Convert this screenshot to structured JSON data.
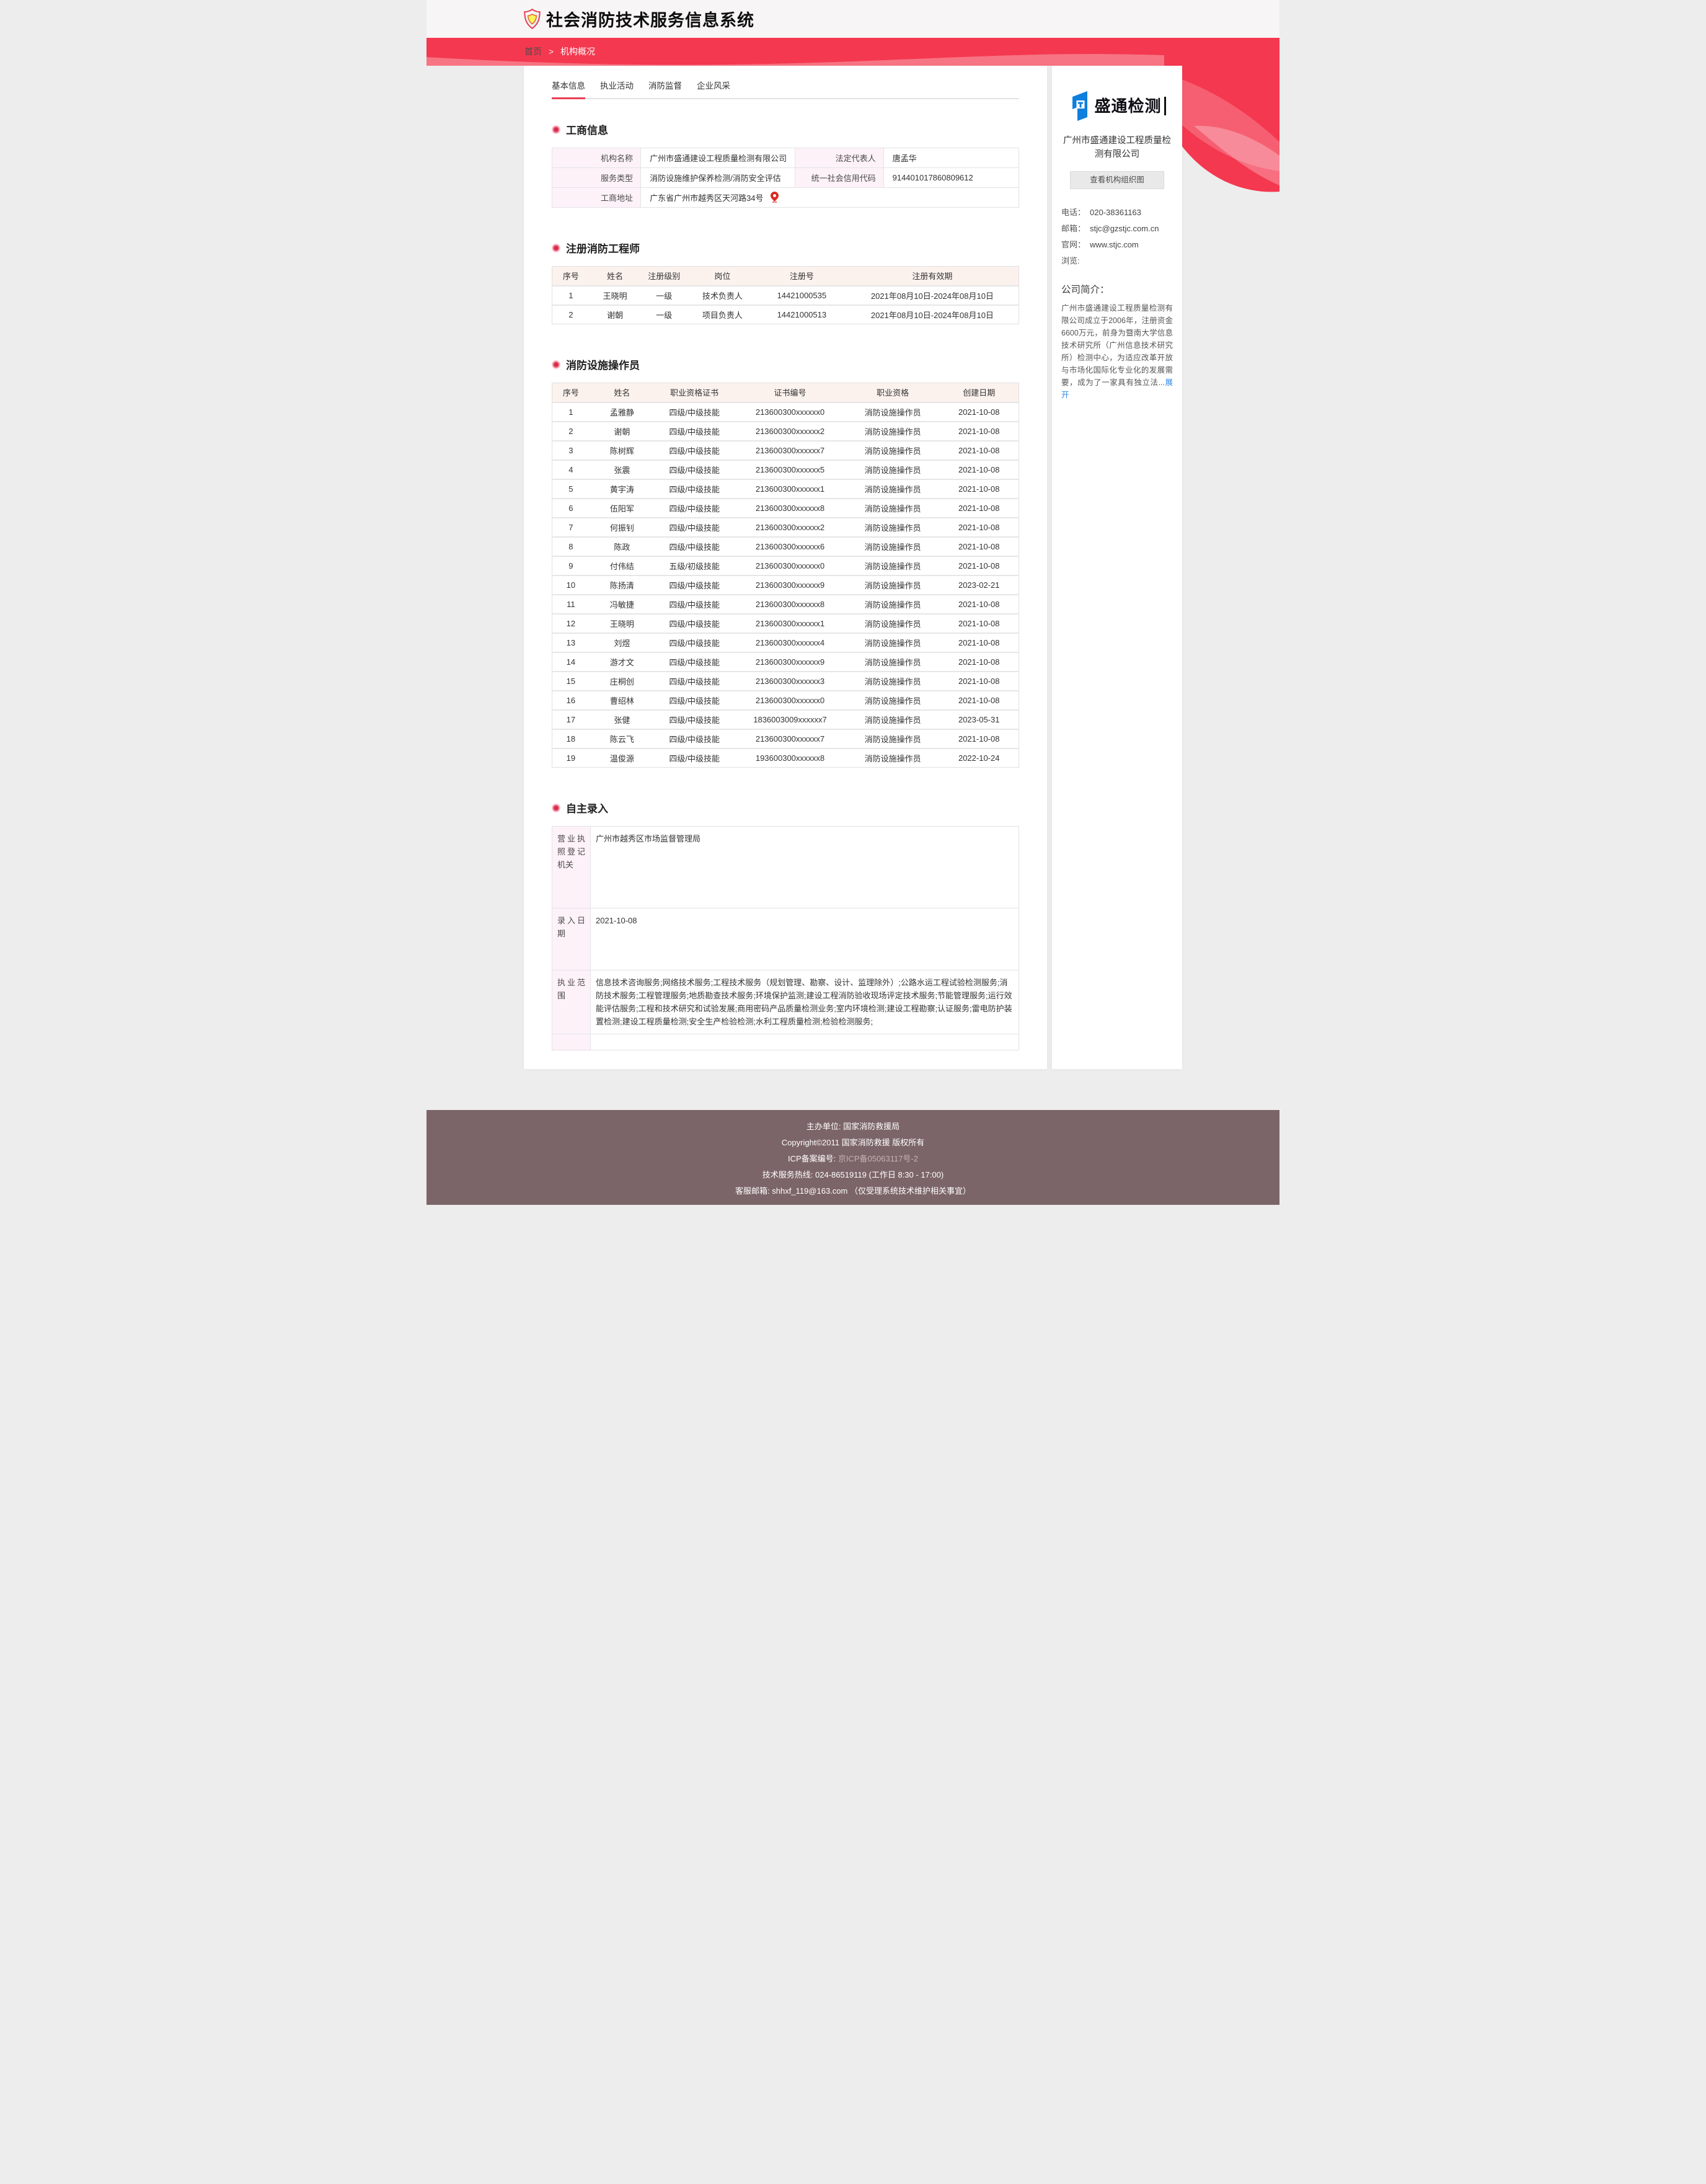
{
  "colors": {
    "accent_red": "#f4384f",
    "tab_underline": "#ea3c55",
    "label_pink_bg": "#fdf2f8",
    "table_header_bg": "#fbf2ee",
    "footer_bg": "#7c6568",
    "link_blue": "#2f8be6",
    "logo_blue": "#0e7fdd"
  },
  "icons": {
    "header_logo": "shield-icon",
    "section_marker": "bullet-icon",
    "address": "location-pin-icon",
    "sidebar_logo": "st-logo-icon"
  },
  "header": {
    "title": "社会消防技术服务信息系统"
  },
  "breadcrumb": {
    "home": "首页",
    "separator": ">",
    "current": "机构概况"
  },
  "tabs": [
    {
      "label": "基本信息",
      "active": true
    },
    {
      "label": "执业活动",
      "active": false
    },
    {
      "label": "消防监督",
      "active": false
    },
    {
      "label": "企业风采",
      "active": false
    }
  ],
  "business": {
    "title": "工商信息",
    "fields": [
      {
        "label": "机构名称",
        "value": "广州市盛通建设工程质量检测有限公司"
      },
      {
        "label": "法定代表人",
        "value": "唐孟华"
      },
      {
        "label": "服务类型",
        "value": "消防设施维护保养检测/消防安全评估"
      },
      {
        "label": "统一社会信用代码",
        "value": "914401017860809612"
      },
      {
        "label": "工商地址",
        "value": "广东省广州市越秀区天河路34号"
      }
    ]
  },
  "engineers": {
    "title": "注册消防工程师",
    "headers": [
      "序号",
      "姓名",
      "注册级别",
      "岗位",
      "注册号",
      "注册有效期"
    ],
    "rows": [
      [
        "1",
        "王晓明",
        "一级",
        "技术负责人",
        "14421000535",
        "2021年08月10日-2024年08月10日"
      ],
      [
        "2",
        "谢朝",
        "一级",
        "项目负责人",
        "14421000513",
        "2021年08月10日-2024年08月10日"
      ]
    ]
  },
  "operators": {
    "title": "消防设施操作员",
    "headers": [
      "序号",
      "姓名",
      "职业资格证书",
      "证书编号",
      "职业资格",
      "创建日期"
    ],
    "rows": [
      [
        "1",
        "孟雅静",
        "四级/中级技能",
        "213600300xxxxxx0",
        "消防设施操作员",
        "2021-10-08"
      ],
      [
        "2",
        "谢朝",
        "四级/中级技能",
        "213600300xxxxxx2",
        "消防设施操作员",
        "2021-10-08"
      ],
      [
        "3",
        "陈树辉",
        "四级/中级技能",
        "213600300xxxxxx7",
        "消防设施操作员",
        "2021-10-08"
      ],
      [
        "4",
        "张震",
        "四级/中级技能",
        "213600300xxxxxx5",
        "消防设施操作员",
        "2021-10-08"
      ],
      [
        "5",
        "黄宇涛",
        "四级/中级技能",
        "213600300xxxxxx1",
        "消防设施操作员",
        "2021-10-08"
      ],
      [
        "6",
        "伍阳军",
        "四级/中级技能",
        "213600300xxxxxx8",
        "消防设施操作员",
        "2021-10-08"
      ],
      [
        "7",
        "何振钊",
        "四级/中级技能",
        "213600300xxxxxx2",
        "消防设施操作员",
        "2021-10-08"
      ],
      [
        "8",
        "陈政",
        "四级/中级技能",
        "213600300xxxxxx6",
        "消防设施操作员",
        "2021-10-08"
      ],
      [
        "9",
        "付伟结",
        "五级/初级技能",
        "213600300xxxxxx0",
        "消防设施操作员",
        "2021-10-08"
      ],
      [
        "10",
        "陈扬清",
        "四级/中级技能",
        "213600300xxxxxx9",
        "消防设施操作员",
        "2023-02-21"
      ],
      [
        "11",
        "冯敏捷",
        "四级/中级技能",
        "213600300xxxxxx8",
        "消防设施操作员",
        "2021-10-08"
      ],
      [
        "12",
        "王晓明",
        "四级/中级技能",
        "213600300xxxxxx1",
        "消防设施操作员",
        "2021-10-08"
      ],
      [
        "13",
        "刘煜",
        "四级/中级技能",
        "213600300xxxxxx4",
        "消防设施操作员",
        "2021-10-08"
      ],
      [
        "14",
        "游才文",
        "四级/中级技能",
        "213600300xxxxxx9",
        "消防设施操作员",
        "2021-10-08"
      ],
      [
        "15",
        "庄桐创",
        "四级/中级技能",
        "213600300xxxxxx3",
        "消防设施操作员",
        "2021-10-08"
      ],
      [
        "16",
        "曹绍林",
        "四级/中级技能",
        "213600300xxxxxx0",
        "消防设施操作员",
        "2021-10-08"
      ],
      [
        "17",
        "张健",
        "四级/中级技能",
        "1836003009xxxxxx7",
        "消防设施操作员",
        "2023-05-31"
      ],
      [
        "18",
        "陈云飞",
        "四级/中级技能",
        "213600300xxxxxx7",
        "消防设施操作员",
        "2021-10-08"
      ],
      [
        "19",
        "温俊源",
        "四级/中级技能",
        "193600300xxxxxx8",
        "消防设施操作员",
        "2022-10-24"
      ]
    ]
  },
  "self_entry": {
    "title": "自主录入",
    "fields": [
      {
        "label": "营业执照登记机关",
        "value": "广州市越秀区市场监督管理局"
      },
      {
        "label": "录入日期",
        "value": "2021-10-08"
      },
      {
        "label": "执业范围",
        "value": "信息技术咨询服务;网络技术服务;工程技术服务（规划管理、勘察、设计、监理除外）;公路水运工程试验检测服务;消防技术服务;工程管理服务;地质勘查技术服务;环境保护监测;建设工程消防验收现场评定技术服务;节能管理服务;运行效能评估服务;工程和技术研究和试验发展;商用密码产品质量检测业务;室内环境检测;建设工程勘察;认证服务;雷电防护装置检测;建设工程质量检测;安全生产检验检测;水利工程质量检测;检验检测服务;"
      },
      {
        "label": "",
        "value": ""
      }
    ]
  },
  "sidebar": {
    "logo_text": "盛通检测",
    "company_name": "广州市盛通建设工程质量检测有限公司",
    "org_button": "查看机构组织图",
    "contacts": [
      {
        "label": "电话：",
        "value": "020-38361163"
      },
      {
        "label": "邮箱：",
        "value": "stjc@gzstjc.com.cn"
      },
      {
        "label": "官网：",
        "value": "www.stjc.com"
      },
      {
        "label": "浏览:",
        "value": ""
      }
    ],
    "intro_title": "公司简介：",
    "intro_text": "广州市盛通建设工程质量检测有限公司成立于2006年，注册资金6600万元，前身为暨南大学信息技术研究所（广州信息技术研究所）检测中心，为适应改革开放与市场化国际化专业化的发展需要，成为了一家具有独立法...",
    "expand_link": "展开"
  },
  "footer": {
    "line1": "主办单位: 国家消防救援局",
    "line2": "Copyright©2011 国家消防救援 版权所有",
    "icp_label": "ICP备案编号: ",
    "icp_value": "京ICP备05063117号-2",
    "line4": "技术服务热线: 024-86519119 (工作日 8:30 - 17:00)",
    "line5": "客服邮箱: shhxf_119@163.com （仅受理系统技术维护相关事宜）"
  }
}
